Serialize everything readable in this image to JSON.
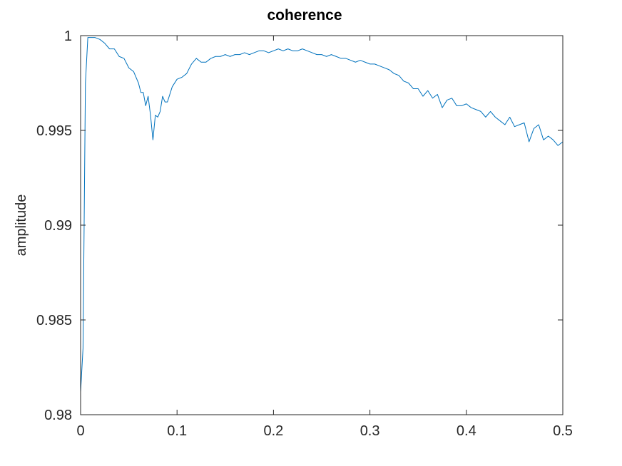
{
  "chart_data": {
    "type": "line",
    "title": "coherence",
    "xlabel": "",
    "ylabel": "amplitude",
    "xlim": [
      0,
      0.5
    ],
    "ylim": [
      0.98,
      1
    ],
    "xticks": [
      0,
      0.1,
      0.2,
      0.3,
      0.4,
      0.5
    ],
    "xtick_labels": [
      "0",
      "0.1",
      "0.2",
      "0.3",
      "0.4",
      "0.5"
    ],
    "yticks": [
      0.98,
      0.985,
      0.99,
      0.995,
      1
    ],
    "ytick_labels": [
      "0.98",
      "0.985",
      "0.99",
      "0.995",
      "1"
    ],
    "grid": false,
    "line_color": "#0072bd",
    "series": [
      {
        "x": [
          0,
          0.0025,
          0.005,
          0.0075,
          0.01,
          0.0125,
          0.015,
          0.02,
          0.025,
          0.03,
          0.035,
          0.04,
          0.045,
          0.05,
          0.055,
          0.06,
          0.0625,
          0.065,
          0.0675,
          0.07,
          0.0725,
          0.075,
          0.0775,
          0.08,
          0.0825,
          0.085,
          0.0875,
          0.09,
          0.095,
          0.1,
          0.105,
          0.11,
          0.115,
          0.12,
          0.125,
          0.13,
          0.135,
          0.14,
          0.145,
          0.15,
          0.155,
          0.16,
          0.165,
          0.17,
          0.175,
          0.18,
          0.185,
          0.19,
          0.195,
          0.2,
          0.205,
          0.21,
          0.215,
          0.22,
          0.225,
          0.23,
          0.235,
          0.24,
          0.245,
          0.25,
          0.255,
          0.26,
          0.265,
          0.27,
          0.275,
          0.28,
          0.285,
          0.29,
          0.295,
          0.3,
          0.305,
          0.31,
          0.315,
          0.32,
          0.325,
          0.33,
          0.335,
          0.34,
          0.345,
          0.35,
          0.355,
          0.36,
          0.365,
          0.37,
          0.375,
          0.38,
          0.385,
          0.39,
          0.395,
          0.4,
          0.405,
          0.41,
          0.415,
          0.42,
          0.425,
          0.43,
          0.435,
          0.44,
          0.445,
          0.45,
          0.455,
          0.46,
          0.465,
          0.47,
          0.475,
          0.48,
          0.485,
          0.49,
          0.495,
          0.5
        ],
        "y": [
          0.9812,
          0.9835,
          0.9975,
          0.9999,
          0.9999,
          0.9999,
          0.9999,
          0.9998,
          0.9996,
          0.9993,
          0.9993,
          0.9989,
          0.9988,
          0.9983,
          0.9981,
          0.9975,
          0.997,
          0.997,
          0.9963,
          0.9968,
          0.9958,
          0.9945,
          0.9958,
          0.9957,
          0.996,
          0.9968,
          0.9965,
          0.9965,
          0.9973,
          0.9977,
          0.9978,
          0.998,
          0.9985,
          0.9988,
          0.9986,
          0.9986,
          0.9988,
          0.9989,
          0.9989,
          0.999,
          0.9989,
          0.999,
          0.999,
          0.9991,
          0.999,
          0.9991,
          0.9992,
          0.9992,
          0.9991,
          0.9992,
          0.9993,
          0.9992,
          0.9993,
          0.9992,
          0.9992,
          0.9993,
          0.9992,
          0.9991,
          0.999,
          0.999,
          0.9989,
          0.999,
          0.9989,
          0.9988,
          0.9988,
          0.9987,
          0.9986,
          0.9987,
          0.9986,
          0.9985,
          0.9985,
          0.9984,
          0.9983,
          0.9982,
          0.998,
          0.9979,
          0.9976,
          0.9975,
          0.9972,
          0.9972,
          0.9968,
          0.9971,
          0.9967,
          0.9969,
          0.9962,
          0.9966,
          0.9967,
          0.9963,
          0.9963,
          0.9964,
          0.9962,
          0.9961,
          0.996,
          0.9957,
          0.996,
          0.9957,
          0.9955,
          0.9953,
          0.9957,
          0.9952,
          0.9953,
          0.9954,
          0.9944,
          0.9951,
          0.9953,
          0.9945,
          0.9947,
          0.9945,
          0.9942,
          0.9944
        ]
      }
    ]
  }
}
